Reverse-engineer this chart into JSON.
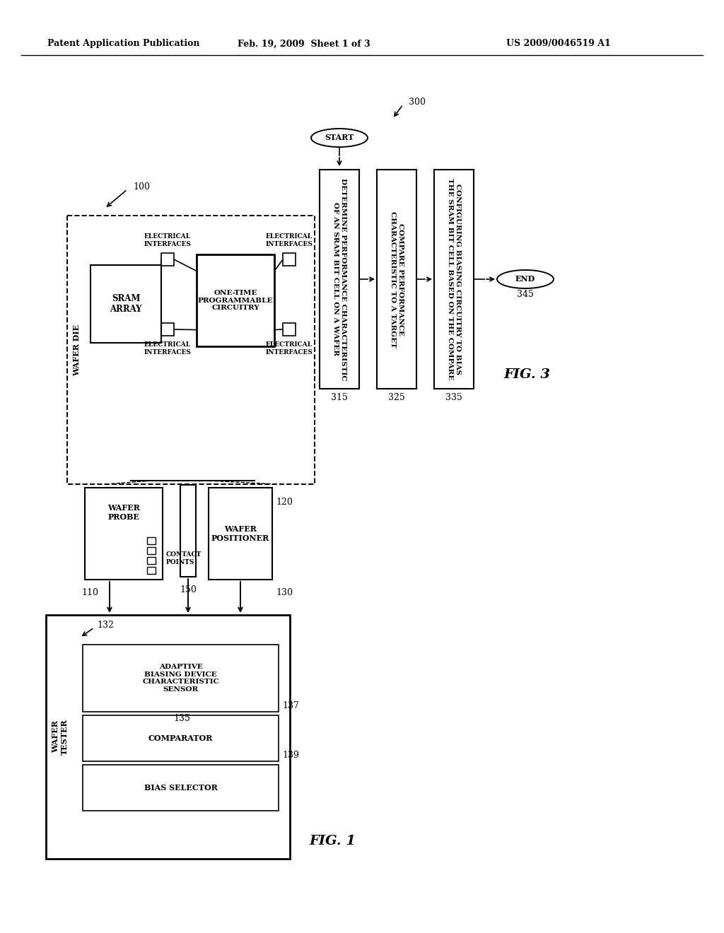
{
  "bg_color": "#ffffff",
  "header_left": "Patent Application Publication",
  "header_mid": "Feb. 19, 2009  Sheet 1 of 3",
  "header_right": "US 2009/0046519 A1"
}
